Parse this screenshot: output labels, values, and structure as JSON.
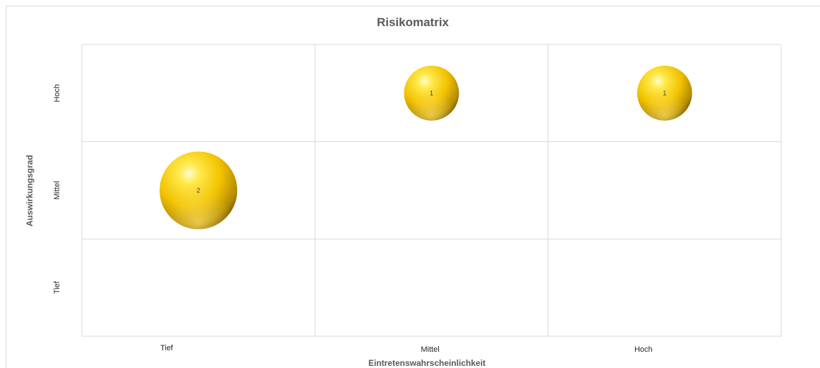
{
  "chart_data": {
    "type": "bubble",
    "title": "Risikomatrix",
    "xlabel": "Eintretenswahrscheinlichkeit",
    "ylabel": "Auswirkungsgrad",
    "x_categories": [
      "Tief",
      "Mittel",
      "Hoch"
    ],
    "y_categories": [
      "Tief",
      "Mittel",
      "Hoch"
    ],
    "points": [
      {
        "x": "Tief",
        "y": "Mittel",
        "size": 2,
        "label": "2"
      },
      {
        "x": "Mittel",
        "y": "Hoch",
        "size": 1,
        "label": "1"
      },
      {
        "x": "Hoch",
        "y": "Hoch",
        "size": 1,
        "label": "1"
      }
    ],
    "grid": true,
    "legend": "none",
    "colors": {
      "bubble_light": "#fff7a0",
      "bubble_mid": "#f5c400",
      "bubble_dark": "#8a6a00",
      "grid": "#d9d9d9",
      "title": "#595959"
    }
  }
}
